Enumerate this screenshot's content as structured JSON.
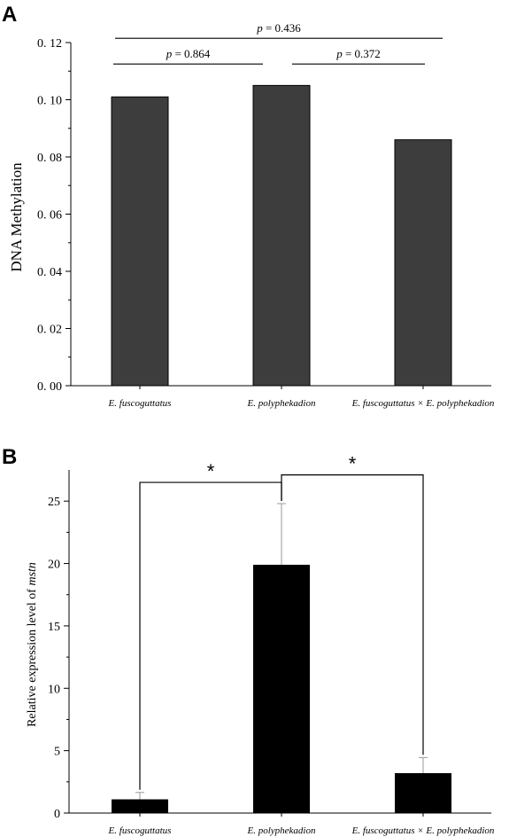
{
  "panels": {
    "a": {
      "letter": "A"
    },
    "b": {
      "letter": "B"
    }
  },
  "chart_data": [
    {
      "type": "bar",
      "categories": [
        "E. fuscoguttatus",
        "E. polyphekadion",
        "E. fuscoguttatus × E. polyphekadion"
      ],
      "values": [
        0.101,
        0.105,
        0.086
      ],
      "ylabel": "DNA Methylation",
      "ylim": [
        0,
        0.12
      ],
      "yticks": [
        0,
        0.02,
        0.04,
        0.06,
        0.08,
        0.1,
        0.12
      ],
      "ytick_labels": [
        "0. 00",
        "0. 02",
        "0. 04",
        "0. 06",
        "0. 08",
        "0. 10",
        "0. 12"
      ],
      "bar_color": "#3d3d3d",
      "grid": false,
      "annotations": [
        {
          "from": 0,
          "to": 1,
          "label": "p = 0.864",
          "p": "p",
          "rest": " = 0.864",
          "level": 0.1125
        },
        {
          "from": 1,
          "to": 2,
          "label": "p = 0.372",
          "p": "p",
          "rest": " = 0.372",
          "level": 0.1125
        },
        {
          "from": 0,
          "to": 2,
          "label": "p = 0.436",
          "p": "p",
          "rest": " = 0.436",
          "level": 0.1215
        }
      ]
    },
    {
      "type": "bar",
      "categories": [
        "E. fuscoguttatus",
        "E. polyphekadion",
        "E. fuscoguttatus × E. polyphekadion"
      ],
      "values": [
        1.1,
        19.9,
        3.2
      ],
      "errors": [
        0.55,
        4.9,
        1.25
      ],
      "ylabel": "Relative expression level of mstn",
      "ylabel_plain": "Relative expression level of ",
      "ylabel_italic": "mstn",
      "ylim": [
        0,
        27.5
      ],
      "yticks": [
        0,
        5,
        10,
        15,
        20,
        25
      ],
      "ytick_labels": [
        "0",
        "5",
        "10",
        "15",
        "20",
        "25"
      ],
      "bar_color": "#000000",
      "grid": false,
      "annotations": [
        {
          "from": 0,
          "to": 1,
          "label": "*",
          "level": 26.5
        },
        {
          "from": 1,
          "to": 2,
          "label": "*",
          "level": 27.1
        }
      ]
    }
  ]
}
